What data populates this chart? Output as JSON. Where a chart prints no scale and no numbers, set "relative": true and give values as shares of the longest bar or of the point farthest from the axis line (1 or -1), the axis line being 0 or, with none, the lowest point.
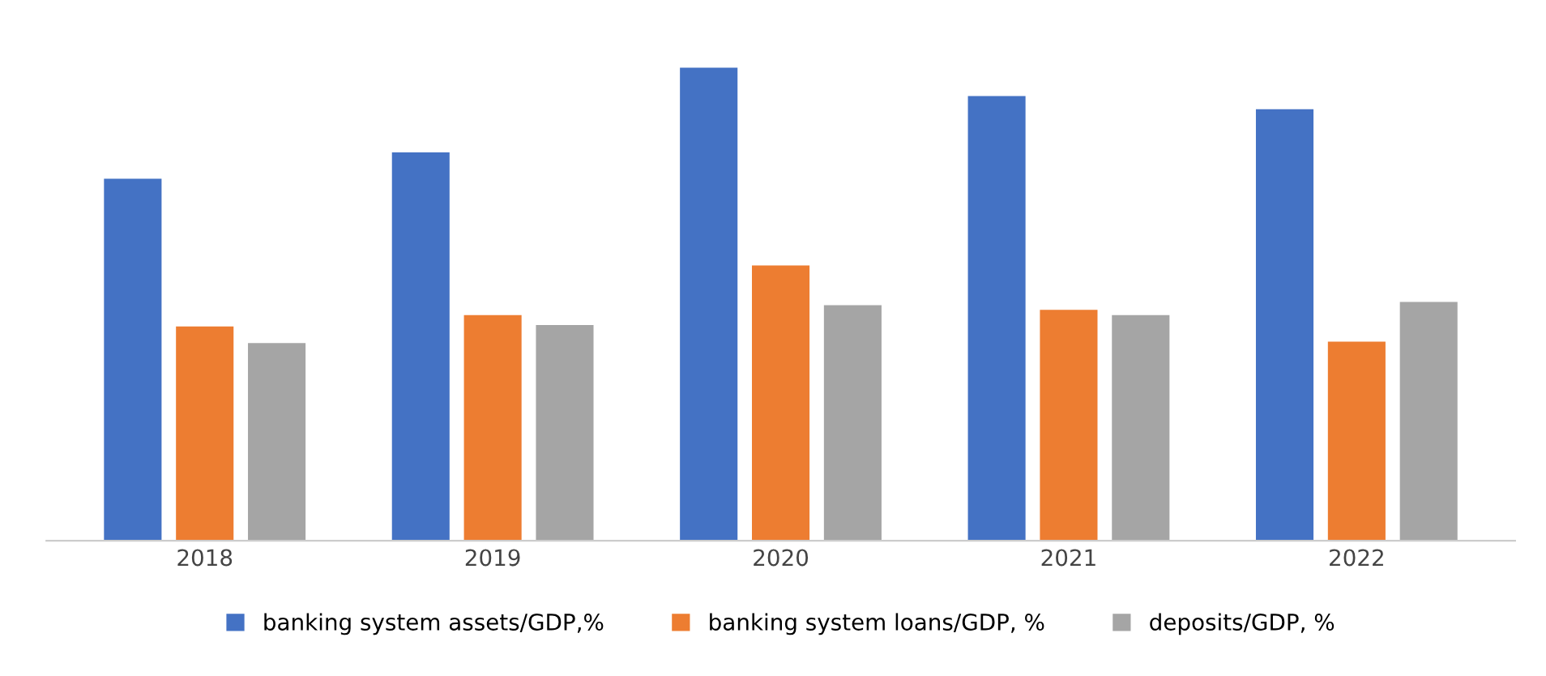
{
  "chart_data": {
    "type": "bar",
    "relative": true,
    "categories": [
      "2018",
      "2019",
      "2020",
      "2021",
      "2022"
    ],
    "series": [
      {
        "name": "banking system assets/GDP,%",
        "color": "#4472c4",
        "values": [
          0.765,
          0.821,
          1,
          0.94,
          0.912
        ]
      },
      {
        "name": "banking system loans/GDP, %",
        "color": "#ed7d31",
        "values": [
          0.453,
          0.477,
          0.582,
          0.488,
          0.421
        ]
      },
      {
        "name": "deposits/GDP, %",
        "color": "#a5a5a5",
        "values": [
          0.418,
          0.456,
          0.498,
          0.477,
          0.505
        ]
      }
    ],
    "legend": "bottom"
  }
}
